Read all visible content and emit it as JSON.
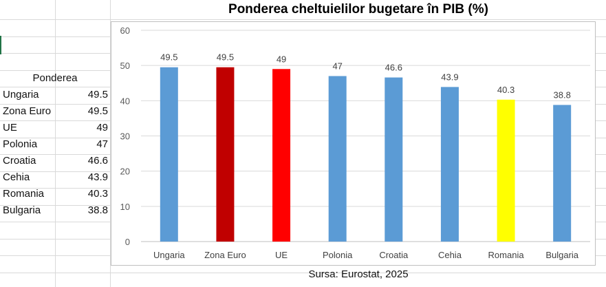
{
  "table": {
    "header": "Ponderea",
    "rows": [
      {
        "name": "Ungaria",
        "value": "49.5"
      },
      {
        "name": "Zona Euro",
        "value": "49.5"
      },
      {
        "name": "UE",
        "value": "49"
      },
      {
        "name": "Polonia",
        "value": "47"
      },
      {
        "name": "Croatia",
        "value": "46.6"
      },
      {
        "name": "Cehia",
        "value": "43.9"
      },
      {
        "name": "Romania",
        "value": "40.3"
      },
      {
        "name": "Bulgaria",
        "value": "38.8"
      }
    ]
  },
  "source": "Sursa: Eurostat, 2025",
  "chart_data": {
    "type": "bar",
    "title": "Ponderea cheltuielilor bugetare în PIB (%)",
    "categories": [
      "Ungaria",
      "Zona Euro",
      "UE",
      "Polonia",
      "Croatia",
      "Cehia",
      "Romania",
      "Bulgaria"
    ],
    "values": [
      49.5,
      49.5,
      49,
      47,
      46.6,
      43.9,
      40.3,
      38.8
    ],
    "data_labels": [
      "49.5",
      "49.5",
      "49",
      "47",
      "46.6",
      "43.9",
      "40.3",
      "38.8"
    ],
    "bar_colors": [
      "#5b9bd5",
      "#c00000",
      "#ff0000",
      "#5b9bd5",
      "#5b9bd5",
      "#5b9bd5",
      "#ffff00",
      "#5b9bd5"
    ],
    "ylim": [
      0,
      60
    ],
    "yticks": [
      0,
      10,
      20,
      30,
      40,
      50,
      60
    ],
    "ytick_labels": [
      "0",
      "10",
      "20",
      "30",
      "40",
      "50",
      "60"
    ],
    "grid": true,
    "legend": "none",
    "xlabel": "",
    "ylabel": ""
  }
}
